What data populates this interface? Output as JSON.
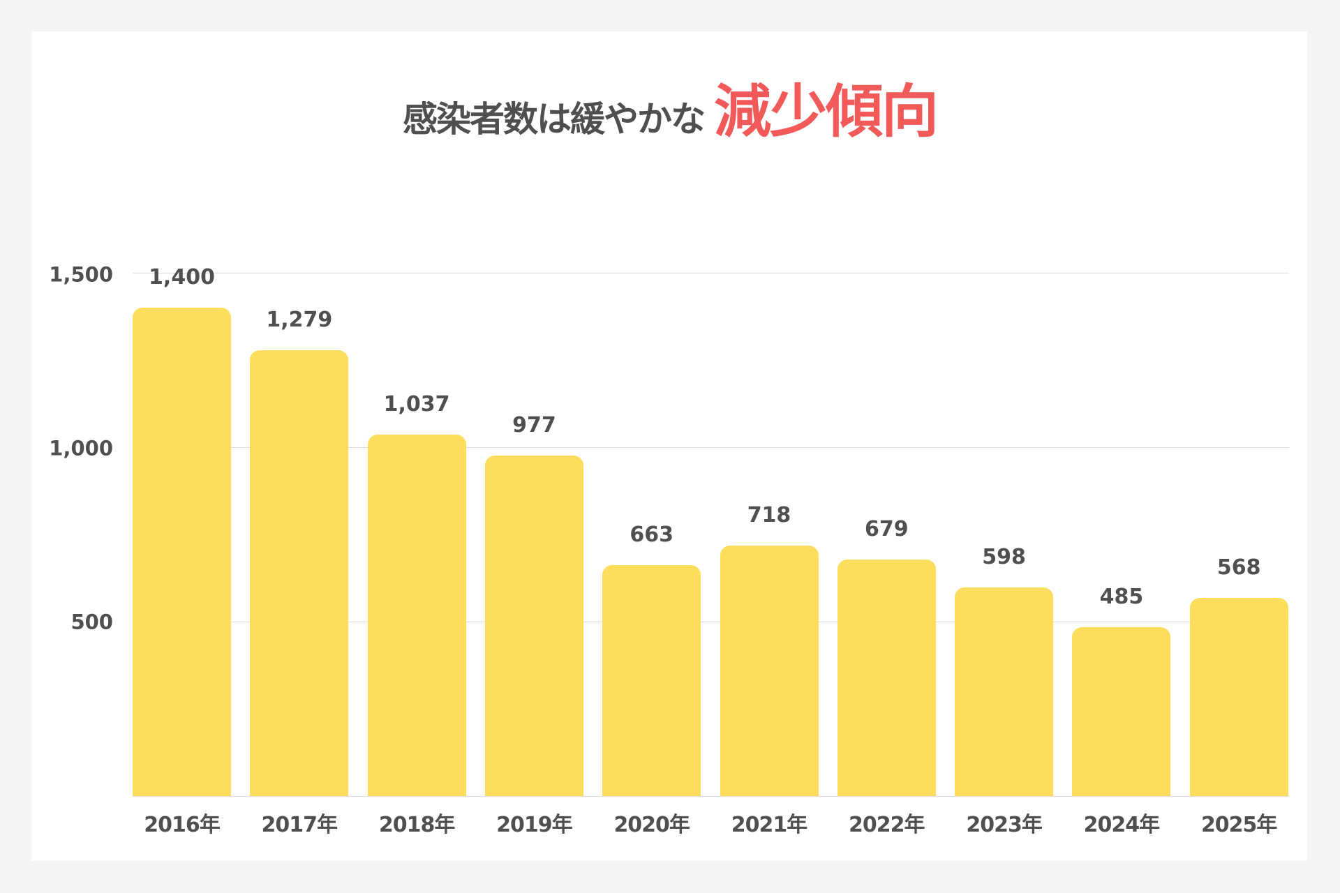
{
  "title": {
    "main": "感染者数は緩やかな",
    "accent": "減少傾向"
  },
  "colors": {
    "background": "#f4f4f4",
    "card": "#ffffff",
    "bar": "#fddd5c",
    "text": "#4f4f4f",
    "accent": "#f25a5a",
    "grid": "#dedede"
  },
  "y_axis": {
    "ticks": [
      "1,500",
      "1,000",
      "500"
    ]
  },
  "x_axis": {
    "labels": [
      "2016年",
      "2017年",
      "2018年",
      "2019年",
      "2020年",
      "2021年",
      "2022年",
      "2023年",
      "2024年",
      "2025年"
    ]
  },
  "value_labels": [
    "1,400",
    "1,279",
    "1,037",
    "977",
    "663",
    "718",
    "679",
    "598",
    "485",
    "568"
  ],
  "chart_data": {
    "type": "bar",
    "title": "感染者数は緩やかな減少傾向",
    "categories": [
      "2016年",
      "2017年",
      "2018年",
      "2019年",
      "2020年",
      "2021年",
      "2022年",
      "2023年",
      "2024年",
      "2025年"
    ],
    "values": [
      1400,
      1279,
      1037,
      977,
      663,
      718,
      679,
      598,
      485,
      568
    ],
    "xlabel": "",
    "ylabel": "",
    "ylim": [
      0,
      1500
    ],
    "yticks": [
      500,
      1000,
      1500
    ],
    "grid": true,
    "legend": null,
    "data_labels": true
  }
}
